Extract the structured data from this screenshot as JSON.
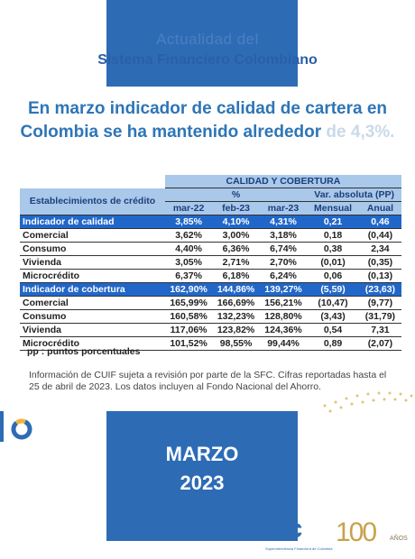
{
  "header": {
    "line1": "Actualidad del",
    "line2": "Sistema Financiero Colombiano"
  },
  "headline": {
    "text": "En marzo  indicador de calidad de cartera en Colombia se ha mantenido alrededor",
    "faded": "de 4,3%."
  },
  "table": {
    "title": "CALIDAD Y COBERTURA",
    "row_header": "Establecimientos de crédito",
    "group_pct": "%",
    "group_var": "Var. absoluta (PP)",
    "columns": [
      "mar-22",
      "feb-23",
      "mar-23",
      "Mensual",
      "Anual"
    ],
    "rows": [
      {
        "label": "Indicador de calidad",
        "cells": [
          "3,85%",
          "4,10%",
          "4,31%",
          "0,21",
          "0,46"
        ],
        "section": true
      },
      {
        "label": "Comercial",
        "cells": [
          "3,62%",
          "3,00%",
          "3,18%",
          "0,18",
          "(0,44)"
        ]
      },
      {
        "label": "Consumo",
        "cells": [
          "4,40%",
          "6,36%",
          "6,74%",
          "0,38",
          "2,34"
        ]
      },
      {
        "label": "Vivienda",
        "cells": [
          "3,05%",
          "2,71%",
          "2,70%",
          "(0,01)",
          "(0,35)"
        ]
      },
      {
        "label": "Microcrédito",
        "cells": [
          "6,37%",
          "6,18%",
          "6,24%",
          "0,06",
          "(0,13)"
        ]
      },
      {
        "label": "Indicador de cobertura",
        "cells": [
          "162,90%",
          "144,86%",
          "139,27%",
          "(5,59)",
          "(23,63)"
        ],
        "section": true
      },
      {
        "label": "Comercial",
        "cells": [
          "165,99%",
          "166,69%",
          "156,21%",
          "(10,47)",
          "(9,77)"
        ]
      },
      {
        "label": "Consumo",
        "cells": [
          "160,58%",
          "132,23%",
          "128,80%",
          "(3,43)",
          "(31,79)"
        ]
      },
      {
        "label": "Vivienda",
        "cells": [
          "117,06%",
          "123,82%",
          "124,36%",
          "0,54",
          "7,31"
        ]
      },
      {
        "label": "Microcrédito",
        "cells": [
          "101,52%",
          "98,55%",
          "99,44%",
          "0,89",
          "(2,07)"
        ]
      }
    ]
  },
  "footnote": "pp : puntos porcentuales",
  "note": "Información de CUIF sujeta a revisión por parte de la SFC. Cifras reportadas hasta el 25 de abril de 2023. Los datos incluyen al Fondo Nacional del Ahorro.",
  "period": {
    "month": "MARZO",
    "year": "2023"
  },
  "logo": {
    "name": "sfc",
    "subtitle": "Superintendencia Financiera de Colombia",
    "anniversary": "100",
    "years": "AÑOS"
  }
}
